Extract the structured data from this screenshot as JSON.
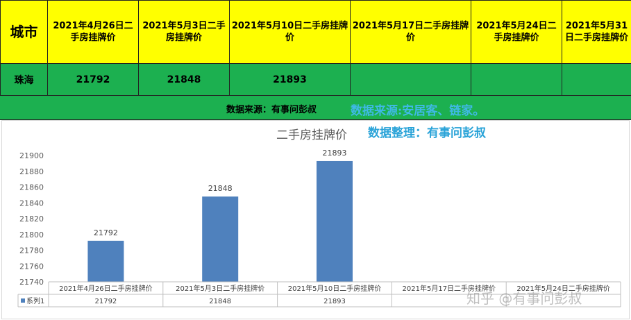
{
  "table": {
    "city_header": "城市",
    "headers": [
      "2021年4月26日二手房挂牌价",
      "2021年5月3日二手房挂牌价",
      "2021年5月10日二手房挂牌价",
      "2021年5月17日二手房挂牌价",
      "2021年5月24日二手房挂牌价",
      "2021年5月31日二手房挂牌价"
    ],
    "city": "珠海",
    "values": [
      "21792",
      "21848",
      "21893",
      "",
      "",
      ""
    ]
  },
  "source_bar": {
    "text": "数据来源：有事问彭叔",
    "overlay": "数据来源:安居客、链家。"
  },
  "overlay_note": "数据整理：有事问彭叔",
  "watermark": "知乎 @有事问彭叔",
  "chart_data": {
    "type": "bar",
    "title": "二手房挂牌价",
    "categories": [
      "2021年4月26日二手房挂牌价",
      "2021年5月3日二手房挂牌价",
      "2021年5月10日二手房挂牌价",
      "2021年5月17日二手房挂牌价",
      "2021年5月24日二手房挂牌价"
    ],
    "series": [
      {
        "name": "系列1",
        "values": [
          21792,
          21848,
          21893,
          null,
          null
        ]
      }
    ],
    "ylim": [
      21740,
      21900
    ],
    "yticks": [
      21740,
      21760,
      21780,
      21800,
      21820,
      21840,
      21860,
      21880,
      21900
    ],
    "grid": false,
    "legend": "data-table",
    "colors": {
      "bar": "#4f81bd"
    }
  }
}
